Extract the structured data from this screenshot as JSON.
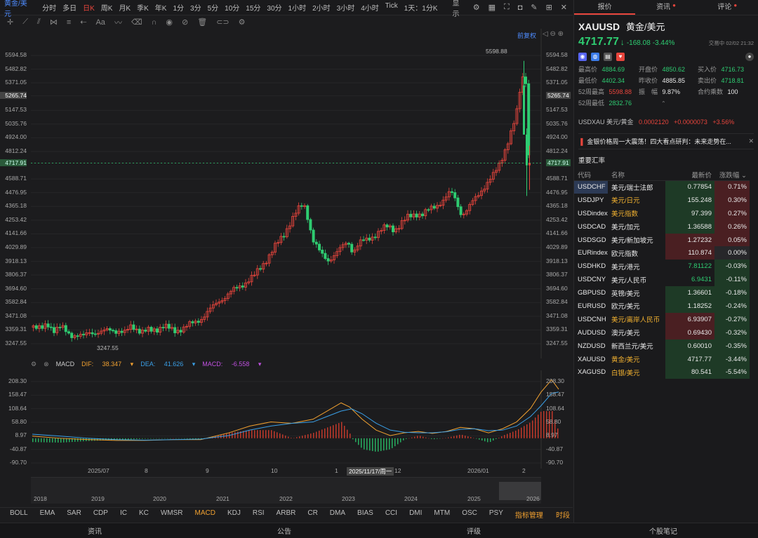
{
  "toolbar": {
    "symbol": "黄金/美元",
    "timeframes": [
      "分时",
      "多日",
      "日K",
      "周K",
      "月K",
      "季K",
      "年K",
      "1分",
      "3分",
      "5分",
      "10分",
      "15分",
      "30分",
      "1小时",
      "2小时",
      "3小时",
      "4小时",
      "Tick",
      "1天：1分K"
    ],
    "active_timeframe": "日K",
    "display_label": "显示"
  },
  "chart": {
    "restore_label": "前复权",
    "high_marker": "5598.88",
    "low_marker": "3247.55",
    "current_price": "4717.91",
    "crosshair_price": "5265.74",
    "y_ticks": [
      "5594.58",
      "5482.82",
      "5371.05",
      "5265.74",
      "5147.53",
      "5035.76",
      "4924.00",
      "4812.24",
      "4717.91",
      "4588.71",
      "4476.95",
      "4365.18",
      "4253.42",
      "4141.66",
      "4029.89",
      "3918.13",
      "3806.37",
      "3694.60",
      "3582.84",
      "3471.08",
      "3359.31",
      "3247.55"
    ],
    "x_ticks": [
      "2025/07",
      "8",
      "9",
      "10",
      "1",
      "12",
      "2026/01",
      "2"
    ],
    "crosshair_date": "2025/11/17/周一",
    "nav_years": [
      "2018",
      "2019",
      "2020",
      "2021",
      "2022",
      "2023",
      "2024",
      "2025",
      "2026"
    ]
  },
  "macd": {
    "label": "MACD",
    "dif_label": "DIF:",
    "dif": "38.347",
    "dea_label": "DEA:",
    "dea": "41.626",
    "macd_label": "MACD:",
    "macd": "-6.558",
    "y_ticks": [
      "208.30",
      "158.47",
      "108.64",
      "58.80",
      "8.97",
      "-40.87",
      "-90.70"
    ]
  },
  "indicators": {
    "items": [
      "BOLL",
      "EMA",
      "SAR",
      "CDP",
      "IC",
      "KC",
      "WMSR",
      "MACD",
      "KDJ",
      "RSI",
      "ARBR",
      "CR",
      "DMA",
      "BIAS",
      "CCI",
      "DMI",
      "MTM",
      "OSC",
      "PSY",
      "指标管理"
    ],
    "active": "MACD",
    "time_sharing": "时段"
  },
  "bottom_nav": [
    "资讯",
    "公告",
    "评级",
    "个股笔记"
  ],
  "panel": {
    "tabs": [
      "报价",
      "资讯",
      "评论"
    ],
    "code": "XAUUSD",
    "name": "黄金/美元",
    "price": "4717.77",
    "arrow": "↓",
    "change": "-168.08",
    "change_pct": "-3.44%",
    "market_status": "交易中 02/02 21:32",
    "stats": [
      {
        "label": "最高价",
        "value": "4884.69",
        "tone": "g"
      },
      {
        "label": "开盘价",
        "value": "4850.62",
        "tone": "g"
      },
      {
        "label": "买入价",
        "value": "4716.73",
        "tone": "g"
      },
      {
        "label": "最低价",
        "value": "4402.34",
        "tone": "g"
      },
      {
        "label": "昨收价",
        "value": "4885.85",
        "tone": "w"
      },
      {
        "label": "卖出价",
        "value": "4718.81",
        "tone": "g"
      },
      {
        "label": "52周最高",
        "value": "5598.88",
        "tone": "r"
      },
      {
        "label": "振　幅",
        "value": "9.87%",
        "tone": "w"
      },
      {
        "label": "合约乘数",
        "value": "100",
        "tone": "w"
      },
      {
        "label": "52周最低",
        "value": "2832.76",
        "tone": "g"
      }
    ],
    "usdxau": {
      "text": "USDXAU 美元/黄金",
      "value": "0.0002120",
      "change": "+0.0000073",
      "pct": "+3.56%"
    },
    "news": "金银价格周一大震荡！四大看点研判：未来走势在...",
    "section_title": "重要汇率",
    "fx_headers": [
      "代码",
      "名称",
      "最新价",
      "涨跌幅"
    ],
    "fx_rows": [
      {
        "code": "USDCHF",
        "name": "美元/瑞士法郎",
        "price": "0.77854",
        "chg": "0.71%",
        "tone": "r",
        "hl": false,
        "pc": "g"
      },
      {
        "code": "USDJPY",
        "name": "美元/日元",
        "price": "155.248",
        "chg": "0.30%",
        "tone": "r",
        "hl": true,
        "pc": "g"
      },
      {
        "code": "USDindex",
        "name": "美元指数",
        "price": "97.399",
        "chg": "0.27%",
        "tone": "r",
        "hl": true,
        "pc": "g"
      },
      {
        "code": "USDCAD",
        "name": "美元/加元",
        "price": "1.36588",
        "chg": "0.26%",
        "tone": "r",
        "hl": false,
        "pc": "g"
      },
      {
        "code": "USDSGD",
        "name": "美元/新加坡元",
        "price": "1.27232",
        "chg": "0.05%",
        "tone": "r",
        "hl": false,
        "pc": "r"
      },
      {
        "code": "EURindex",
        "name": "欧元指数",
        "price": "110.874",
        "chg": "0.00%",
        "tone": "gr",
        "hl": false,
        "pc": "r"
      },
      {
        "code": "USDHKD",
        "name": "美元/港元",
        "price": "7.81122",
        "chg": "-0.03%",
        "tone": "g",
        "hl": false,
        "pc": "n"
      },
      {
        "code": "USDCNY",
        "name": "美元/人民币",
        "price": "6.9431",
        "chg": "-0.11%",
        "tone": "g",
        "hl": false,
        "pc": "n"
      },
      {
        "code": "GBPUSD",
        "name": "英镑/美元",
        "price": "1.36601",
        "chg": "-0.18%",
        "tone": "g",
        "hl": false,
        "pc": "g"
      },
      {
        "code": "EURUSD",
        "name": "欧元/美元",
        "price": "1.18252",
        "chg": "-0.24%",
        "tone": "g",
        "hl": false,
        "pc": "g"
      },
      {
        "code": "USDCNH",
        "name": "美元/离岸人民币",
        "price": "6.93907",
        "chg": "-0.27%",
        "tone": "g",
        "hl": true,
        "pc": "r"
      },
      {
        "code": "AUDUSD",
        "name": "澳元/美元",
        "price": "0.69430",
        "chg": "-0.32%",
        "tone": "g",
        "hl": false,
        "pc": "r"
      },
      {
        "code": "NZDUSD",
        "name": "新西兰元/美元",
        "price": "0.60010",
        "chg": "-0.35%",
        "tone": "g",
        "hl": false,
        "pc": "g"
      },
      {
        "code": "XAUUSD",
        "name": "黄金/美元",
        "price": "4717.77",
        "chg": "-3.44%",
        "tone": "g",
        "hl": true,
        "pc": "g"
      },
      {
        "code": "XAGUSD",
        "name": "白银/美元",
        "price": "80.541",
        "chg": "-5.54%",
        "tone": "g",
        "hl": true,
        "pc": "g"
      }
    ]
  },
  "colors": {
    "up": "#e8453c",
    "down": "#2ecc71",
    "accent": "#f0a030",
    "dif": "#f0a030",
    "dea": "#3aa0e8"
  }
}
